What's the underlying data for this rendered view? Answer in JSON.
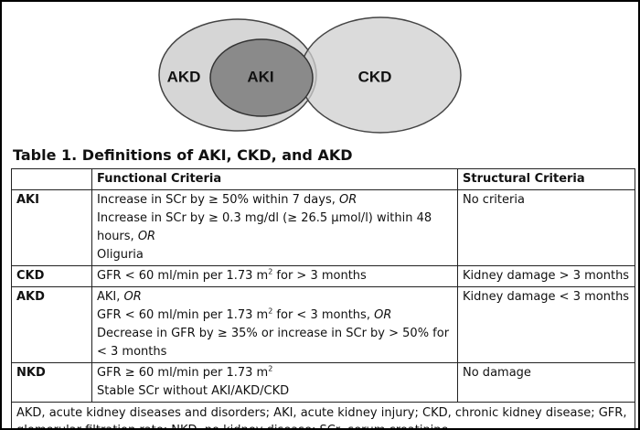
{
  "diagram": {
    "labels": [
      "AKD",
      "AKI",
      "CKD"
    ]
  },
  "table": {
    "title": "Table 1. Definitions of AKI, CKD, and AKD",
    "header": {
      "functional": "Functional Criteria",
      "structural": "Structural Criteria"
    },
    "rows": [
      {
        "label": "AKI",
        "functional": [
          [
            "Increase in SCr by ≥ 50% within 7 days, ",
            {
              "i": "OR"
            }
          ],
          [
            "Increase in SCr by ≥ 0.3 mg/dl (≥ 26.5 µmol/l) within 48"
          ],
          [
            "hours, ",
            {
              "i": "OR"
            }
          ],
          [
            "Oliguria"
          ]
        ],
        "structural": [
          [
            "No criteria"
          ]
        ]
      },
      {
        "label": "CKD",
        "functional": [
          [
            "GFR < 60 ml/min per 1.73 m",
            {
              "sup": "2"
            },
            " for > 3 months"
          ]
        ],
        "structural": [
          [
            "Kidney damage > 3 months"
          ]
        ]
      },
      {
        "label": "AKD",
        "functional": [
          [
            "AKI, ",
            {
              "i": "OR"
            }
          ],
          [
            "GFR < 60 ml/min per 1.73 m",
            {
              "sup": "2"
            },
            " for < 3 months, ",
            {
              "i": "OR"
            }
          ],
          [
            "Decrease in GFR by ≥ 35% or increase in SCr by > 50% for"
          ],
          [
            "< 3 months"
          ]
        ],
        "structural": [
          [
            "Kidney damage < 3 months"
          ]
        ]
      },
      {
        "label": "NKD",
        "functional": [
          [
            "GFR ≥ 60 ml/min per 1.73 m",
            {
              "sup": "2"
            }
          ],
          [
            "Stable SCr without AKI/AKD/CKD"
          ]
        ],
        "structural": [
          [
            "No damage"
          ]
        ]
      }
    ],
    "footnote": "AKD, acute kidney diseases and disorders; AKI, acute kidney injury; CKD, chronic kidney disease; GFR, glomerular filtration rate; NKD, no kidney disease; SCr, serum creatinine."
  }
}
